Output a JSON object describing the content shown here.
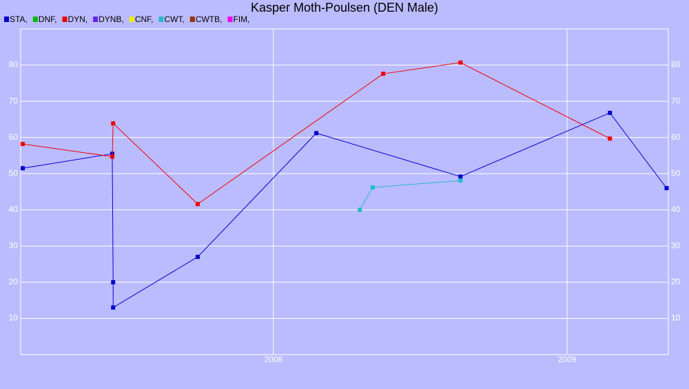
{
  "chart_data": {
    "type": "line",
    "title": "Kasper Moth-Poulsen (DEN Male)",
    "xlim": [
      2007.139,
      2009.345
    ],
    "xticks": [
      2008,
      2009
    ],
    "ylim": [
      0,
      90
    ],
    "yticks": [
      10,
      20,
      30,
      40,
      50,
      60,
      70,
      80
    ],
    "grid": true,
    "right_axis": true,
    "background": "#bbbbff",
    "series": [
      {
        "name": "STA,",
        "color": "#0000cc",
        "x": [
          2007.146,
          2007.451,
          2007.454,
          2007.454,
          2007.742,
          2008.146,
          2008.637,
          2009.146,
          2009.339
        ],
        "values": [
          51.5,
          55.5,
          20,
          13,
          27,
          61.2,
          49.2,
          66.8,
          46
        ]
      },
      {
        "name": "DNF,",
        "color": "#00bb00",
        "x": [],
        "values": []
      },
      {
        "name": "DYN,",
        "color": "#ee0000",
        "x": [
          2007.146,
          2007.451,
          2007.454,
          2007.742,
          2008.374,
          2008.637,
          2009.146
        ],
        "values": [
          58.2,
          54.7,
          63.9,
          41.6,
          77.6,
          80.7,
          59.7
        ]
      },
      {
        "name": "DYNB,",
        "color": "#6622ee",
        "x": [],
        "values": []
      },
      {
        "name": "CNF,",
        "color": "#eeee00",
        "x": [],
        "values": []
      },
      {
        "name": "CWT,",
        "color": "#22bbcc",
        "x": [
          2008.294,
          2008.338,
          2008.637
        ],
        "values": [
          40,
          46.2,
          48.1
        ]
      },
      {
        "name": "CWTB,",
        "color": "#993300",
        "x": [],
        "values": []
      },
      {
        "name": "FIM,",
        "color": "#ee00ee",
        "x": [],
        "values": []
      }
    ]
  }
}
